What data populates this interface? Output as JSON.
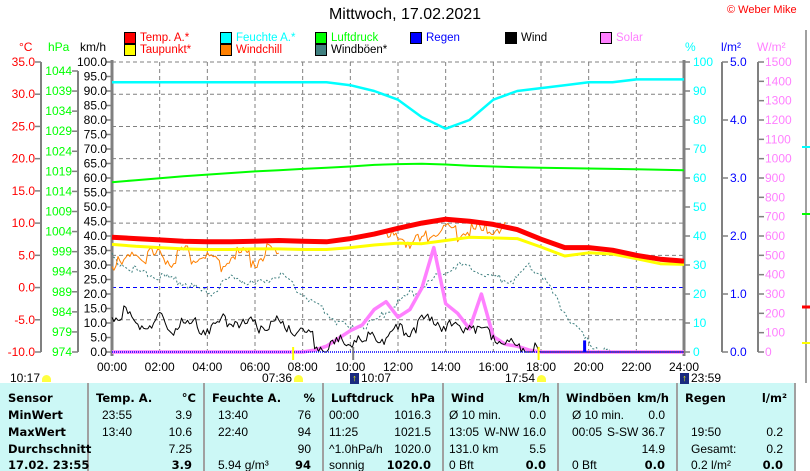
{
  "header": {
    "title": "Mittwoch, 17.02.2021",
    "copyright": "© Weber Mike"
  },
  "legend": [
    {
      "label": "Temp. A.*",
      "color": "#ff0000",
      "text_color": "#ff0000"
    },
    {
      "label": "Feuchte A.*",
      "color": "#00ffff",
      "text_color": "#00ffff"
    },
    {
      "label": "Luftdruck",
      "color": "#00ff00",
      "text_color": "#00ff00"
    },
    {
      "label": "Regen",
      "color": "#0000ff",
      "text_color": "#0000ff"
    },
    {
      "label": "Wind",
      "color": "#000000",
      "text_color": "#000000"
    },
    {
      "label": "Solar",
      "color": "#ff80ff",
      "text_color": "#ff80ff"
    },
    {
      "label": "Taupunkt*",
      "color": "#ffff00",
      "text_color": "#ff0000"
    },
    {
      "label": "Windchill",
      "color": "#ff8000",
      "text_color": "#ff0000"
    },
    {
      "label": "Windböen*",
      "color": "#408080",
      "text_color": "#000000"
    }
  ],
  "units": {
    "temp": "°C",
    "pressure": "hPa",
    "wind": "km/h",
    "humidity": "%",
    "rain": "l/m²",
    "solar": "W/m²"
  },
  "chart_data": {
    "type": "line",
    "title": "Mittwoch, 17.02.2021",
    "x_ticks": [
      "00:00",
      "02:00",
      "04:00",
      "06:00",
      "08:00",
      "10:00",
      "12:00",
      "14:00",
      "16:00",
      "18:00",
      "20:00",
      "22:00",
      "24:00"
    ],
    "axes": {
      "temp": {
        "range": [
          -10,
          35
        ],
        "ticks": [
          "35.0",
          "30.0",
          "25.0",
          "20.0",
          "15.0",
          "10.0",
          "5.0",
          "0.0",
          "-5.0",
          "-10.0"
        ],
        "color": "#ff0000"
      },
      "pressure": {
        "range": [
          974,
          1044
        ],
        "ticks": [
          "1044",
          "1039",
          "1034",
          "1029",
          "1024",
          "1019",
          "1014",
          "1009",
          "1004",
          "999",
          "994",
          "989",
          "984",
          "979",
          "974"
        ],
        "color": "#00ff00"
      },
      "wind": {
        "range": [
          0,
          100
        ],
        "ticks": [
          "100.0",
          "95.0",
          "90.0",
          "85.0",
          "80.0",
          "75.0",
          "70.0",
          "65.0",
          "60.0",
          "55.0",
          "50.0",
          "45.0",
          "40.0",
          "35.0",
          "30.0",
          "25.0",
          "20.0",
          "15.0",
          "10.0",
          "5.0",
          "0.0"
        ],
        "color": "#000000"
      },
      "humidity": {
        "range": [
          0,
          100
        ],
        "ticks": [
          "100",
          "90",
          "80",
          "70",
          "60",
          "50",
          "40",
          "30",
          "20",
          "10",
          "0"
        ],
        "color": "#00ffff"
      },
      "rain": {
        "range": [
          0,
          5
        ],
        "ticks": [
          "5.0",
          "4.0",
          "3.0",
          "2.0",
          "1.0",
          "0.0"
        ],
        "color": "#0000ff"
      },
      "solar": {
        "range": [
          0,
          1500
        ],
        "ticks": [
          "1500",
          "1400",
          "1300",
          "1200",
          "1100",
          "1000",
          "900",
          "800",
          "700",
          "600",
          "500",
          "400",
          "300",
          "200",
          "100",
          "0"
        ],
        "color": "#ff80ff"
      }
    },
    "hourly_x": "0..24 h, step 1",
    "halfhour_x": "0..24 h, step 0.5",
    "series": [
      {
        "name": "Temp. A.",
        "axis": "temp",
        "step": 1,
        "values": [
          7.8,
          7.6,
          7.4,
          7.2,
          7.1,
          7.1,
          7.2,
          7.3,
          7.2,
          7.1,
          7.6,
          8.3,
          9.2,
          10.0,
          10.6,
          10.3,
          9.8,
          9.0,
          7.5,
          6.2,
          6.2,
          5.8,
          5.0,
          4.4,
          4.1
        ]
      },
      {
        "name": "Taupunkt",
        "axis": "temp",
        "step": 1,
        "values": [
          6.7,
          6.4,
          6.2,
          6.0,
          5.9,
          5.9,
          6.0,
          6.0,
          5.9,
          5.9,
          6.2,
          6.6,
          6.9,
          6.8,
          7.3,
          7.8,
          7.7,
          7.6,
          6.3,
          4.9,
          5.4,
          5.2,
          4.5,
          3.7,
          3.6
        ]
      },
      {
        "name": "Feuchte A.",
        "axis": "humidity",
        "step": 1,
        "values": [
          93,
          93,
          93,
          93,
          93,
          93,
          93,
          93,
          93,
          93,
          92,
          90,
          87,
          81,
          77,
          80,
          87,
          90,
          91,
          92,
          93,
          93,
          94,
          94,
          94
        ]
      },
      {
        "name": "Luftdruck",
        "axis": "pressure",
        "step": 1,
        "values": [
          1016.3,
          1016.8,
          1017.3,
          1017.8,
          1018.2,
          1018.6,
          1019.0,
          1019.3,
          1019.6,
          1019.9,
          1020.2,
          1020.6,
          1020.8,
          1020.9,
          1020.7,
          1020.4,
          1020.2,
          1020.0,
          1019.9,
          1019.8,
          1019.7,
          1019.6,
          1019.5,
          1019.4,
          1019.3
        ]
      },
      {
        "name": "Windchill",
        "axis": "temp",
        "step": 0.5,
        "values": [
          4.0,
          3.2,
          5.5,
          4.8,
          5.0,
          3.8,
          5.6,
          4.5,
          5.2,
          3.5,
          4.8,
          5.2,
          4.0,
          5.5,
          4.8,
          null,
          null,
          null,
          null,
          null,
          null,
          null,
          null,
          7.5,
          8.0,
          7.2,
          7.0,
          8.8,
          9.5,
          8.2,
          9.0,
          8.6,
          9.2,
          9.0,
          null,
          null,
          null,
          null,
          null,
          null,
          null,
          null,
          null,
          null,
          null,
          null,
          null,
          null,
          null
        ]
      },
      {
        "name": "Windböen",
        "axis": "wind",
        "step": 0.5,
        "values": [
          33,
          30,
          28,
          27,
          26,
          25,
          24,
          22,
          20,
          22,
          26,
          25,
          23,
          25,
          27,
          24,
          20,
          17,
          14,
          10,
          8,
          9,
          10,
          14,
          17,
          20,
          22,
          25,
          28,
          30,
          29,
          27,
          26,
          25,
          25,
          30,
          27,
          20,
          14,
          8,
          3,
          1,
          0,
          0,
          0,
          0,
          0,
          0,
          0
        ]
      },
      {
        "name": "Wind",
        "axis": "wind",
        "step": 0.5,
        "values": [
          12,
          13,
          10,
          9,
          11,
          8,
          10,
          9,
          8,
          10,
          12,
          9,
          10,
          8,
          10,
          9,
          7,
          4,
          1,
          3,
          5,
          2,
          6,
          5,
          7,
          8,
          10,
          11,
          9,
          8,
          10,
          8,
          6,
          4,
          2,
          1,
          0,
          0,
          0,
          0,
          0,
          0,
          0,
          0,
          0,
          0,
          0,
          0,
          0
        ]
      },
      {
        "name": "Solar",
        "axis": "solar",
        "step": 0.5,
        "values": [
          0,
          0,
          0,
          0,
          0,
          0,
          0,
          0,
          0,
          0,
          0,
          0,
          0,
          0,
          0,
          0,
          0,
          10,
          30,
          70,
          110,
          140,
          220,
          260,
          180,
          220,
          330,
          540,
          250,
          200,
          120,
          300,
          80,
          40,
          30,
          10,
          0,
          0,
          0,
          0,
          0,
          0,
          0,
          0,
          0,
          0,
          0,
          0,
          0
        ]
      },
      {
        "name": "Regen",
        "axis": "rain",
        "type": "bar",
        "points": [
          {
            "time": 19.83,
            "value": 0.2
          }
        ]
      }
    ],
    "reference_line": {
      "axis": "temp",
      "value": 0
    }
  },
  "astro": [
    {
      "time": "10:17",
      "icon": "moonset-icon"
    },
    {
      "time": "07:36",
      "icon": "sunrise-icon"
    },
    {
      "time": "10:07",
      "icon": "moonrise-icon"
    },
    {
      "time": "17:54",
      "icon": "sunset-icon"
    },
    {
      "time": "23:59",
      "icon": "moon-icon"
    }
  ],
  "table": {
    "row_labels": [
      "Sensor",
      "MinWert",
      "MaxWert",
      "Durchschnitt",
      "17.02. 23:55"
    ],
    "columns": [
      {
        "header": "Temp. A.",
        "unit": "°C",
        "rows": [
          [
            "23:55",
            "3.9"
          ],
          [
            "13:40",
            "10.6"
          ],
          [
            "",
            "7.25"
          ],
          [
            "",
            "3.9"
          ]
        ]
      },
      {
        "header": "Feuchte A.",
        "unit": "%",
        "rows": [
          [
            "13:40",
            "76"
          ],
          [
            "22:40",
            "94"
          ],
          [
            "",
            "90"
          ],
          [
            "5.94 g/m³",
            "94"
          ]
        ]
      },
      {
        "header": "Luftdruck",
        "unit": "hPa",
        "rows": [
          [
            "00:00",
            "1016.3"
          ],
          [
            "11:25",
            "1021.5"
          ],
          [
            "^1.0hPa/h",
            "1020.0"
          ],
          [
            "sonnig",
            "1020.0"
          ]
        ]
      },
      {
        "header": "Wind",
        "unit": "km/h",
        "rows": [
          [
            "Ø 10 min.",
            "0.0"
          ],
          [
            "13:05",
            "W-NW 16.0"
          ],
          [
            "131.0 km",
            "5.5"
          ],
          [
            "0 Bft",
            "0.0"
          ]
        ]
      },
      {
        "header": "Windböen",
        "unit": "km/h",
        "rows": [
          [
            "Ø 10 min.",
            "0.0"
          ],
          [
            "00:05",
            "S-SW 36.7"
          ],
          [
            "",
            "14.9"
          ],
          [
            "0 Bft",
            "0.0"
          ]
        ]
      },
      {
        "header": "Regen",
        "unit": "l/m²",
        "rows": [
          [
            "",
            ""
          ],
          [
            "19:50",
            "0.2"
          ],
          [
            "Gesamt:",
            "0.2"
          ],
          [
            "0.2 l/m²",
            "0.0"
          ]
        ]
      }
    ]
  }
}
